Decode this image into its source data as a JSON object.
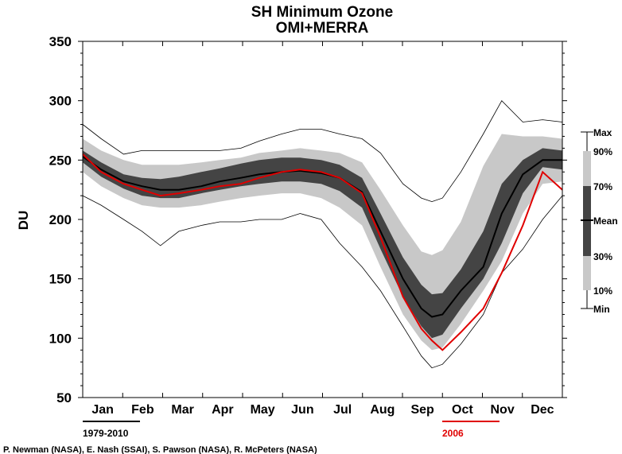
{
  "chart_data": {
    "type": "area",
    "title": "SH Minimum Ozone",
    "subtitle": "OMI+MERRA",
    "ylabel": "DU",
    "xlabel": "",
    "ylim": [
      50,
      350
    ],
    "yticks": [
      50,
      100,
      150,
      200,
      250,
      300,
      350
    ],
    "months": [
      "Jan",
      "Feb",
      "Mar",
      "Apr",
      "May",
      "Jun",
      "Jul",
      "Aug",
      "Sep",
      "Oct",
      "Nov",
      "Dec"
    ],
    "grid": false,
    "legend": {
      "placement": "right",
      "labels": [
        "Max",
        "90%",
        "70%",
        "Mean",
        "30%",
        "10%",
        "Min"
      ]
    },
    "climatology_label": "1979-2010",
    "year_label": "2006",
    "colors": {
      "band_10_90": "#c8c8c8",
      "band_30_70": "#444444",
      "mean": "#000000",
      "year_line": "#e00000",
      "minmax": "#000000"
    },
    "x_day": [
      1,
      15,
      32,
      46,
      60,
      74,
      91,
      105,
      121,
      135,
      152,
      166,
      182,
      196,
      213,
      227,
      244,
      258,
      266,
      274,
      288,
      305,
      319,
      335,
      350,
      365
    ],
    "series": [
      {
        "name": "Max",
        "values": [
          280,
          268,
          255,
          258,
          258,
          258,
          258,
          258,
          260,
          266,
          272,
          276,
          276,
          272,
          268,
          256,
          230,
          218,
          215,
          218,
          240,
          272,
          300,
          282,
          284,
          282
        ]
      },
      {
        "name": "90%",
        "values": [
          268,
          258,
          250,
          246,
          246,
          246,
          248,
          250,
          252,
          256,
          258,
          260,
          258,
          256,
          248,
          225,
          195,
          173,
          170,
          174,
          198,
          245,
          272,
          270,
          270,
          268
        ]
      },
      {
        "name": "70%",
        "values": [
          258,
          248,
          238,
          235,
          234,
          236,
          240,
          243,
          247,
          250,
          252,
          252,
          250,
          246,
          235,
          205,
          168,
          145,
          137,
          138,
          158,
          190,
          230,
          250,
          260,
          258
        ]
      },
      {
        "name": "Mean",
        "values": [
          253,
          242,
          232,
          228,
          225,
          225,
          228,
          232,
          235,
          238,
          240,
          241,
          239,
          235,
          223,
          190,
          150,
          125,
          118,
          120,
          140,
          160,
          205,
          238,
          250,
          250
        ]
      },
      {
        "name": "30%",
        "values": [
          248,
          236,
          226,
          220,
          218,
          218,
          222,
          225,
          228,
          230,
          232,
          232,
          230,
          224,
          210,
          175,
          135,
          110,
          100,
          103,
          125,
          150,
          180,
          222,
          244,
          242
        ]
      },
      {
        "name": "10%",
        "values": [
          240,
          228,
          218,
          212,
          210,
          210,
          212,
          215,
          218,
          220,
          222,
          222,
          218,
          210,
          195,
          160,
          120,
          98,
          90,
          92,
          112,
          140,
          165,
          205,
          230,
          232
        ]
      },
      {
        "name": "Min",
        "values": [
          220,
          212,
          200,
          190,
          178,
          190,
          195,
          198,
          198,
          200,
          200,
          205,
          200,
          180,
          160,
          140,
          110,
          85,
          75,
          78,
          95,
          120,
          155,
          175,
          200,
          220
        ]
      },
      {
        "name": "2006",
        "values": [
          255,
          240,
          230,
          225,
          220,
          222,
          225,
          228,
          230,
          235,
          240,
          242,
          240,
          235,
          222,
          185,
          135,
          108,
          98,
          90,
          105,
          125,
          155,
          195,
          240,
          225
        ]
      }
    ],
    "credit": "P. Newman (NASA), E. Nash (SSAI), S. Pawson (NASA), R. McPeters (NASA)"
  }
}
